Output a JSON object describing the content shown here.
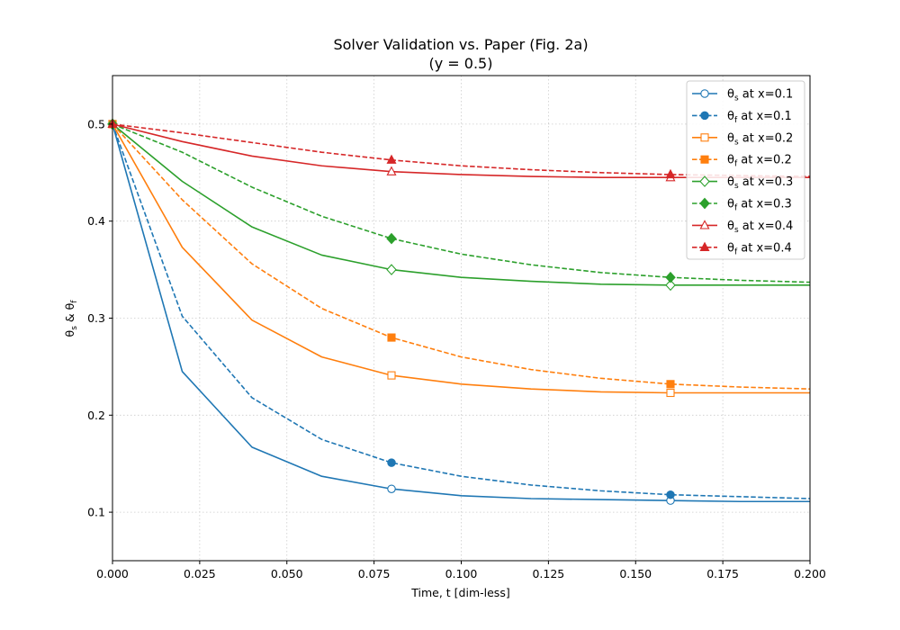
{
  "chart_data": {
    "type": "line",
    "title": "Solver Validation vs. Paper (Fig. 2a)",
    "subtitle": "(y = 0.5)",
    "xlabel": "Time, t [dim-less]",
    "ylabel": "θs & θf",
    "xlim": [
      0.0,
      0.2
    ],
    "ylim": [
      0.05,
      0.55
    ],
    "xticks": [
      0.0,
      0.025,
      0.05,
      0.075,
      0.1,
      0.125,
      0.15,
      0.175,
      0.2
    ],
    "xtick_labels": [
      "0.000",
      "0.025",
      "0.050",
      "0.075",
      "0.100",
      "0.125",
      "0.150",
      "0.175",
      "0.200"
    ],
    "yticks": [
      0.1,
      0.2,
      0.3,
      0.4,
      0.5
    ],
    "ytick_labels": [
      "0.1",
      "0.2",
      "0.3",
      "0.4",
      "0.5"
    ],
    "grid": true,
    "legend_position": "top-right",
    "x": [
      0.0,
      0.02,
      0.04,
      0.06,
      0.08,
      0.1,
      0.12,
      0.14,
      0.16,
      0.18,
      0.2
    ],
    "marker_x": [
      0.0,
      0.08,
      0.16
    ],
    "series": [
      {
        "name": "θs at x=0.1",
        "sym": "θ",
        "sub": "s",
        "rest": " at x=0.1",
        "color": "#1f77b4",
        "dash": false,
        "marker": "circle",
        "filled": false,
        "values": [
          0.5,
          0.245,
          0.167,
          0.137,
          0.124,
          0.117,
          0.114,
          0.113,
          0.112,
          0.111,
          0.111
        ]
      },
      {
        "name": "θf at x=0.1",
        "sym": "θ",
        "sub": "f",
        "rest": " at x=0.1",
        "color": "#1f77b4",
        "dash": true,
        "marker": "circle",
        "filled": true,
        "values": [
          0.5,
          0.302,
          0.218,
          0.175,
          0.151,
          0.137,
          0.128,
          0.122,
          0.118,
          0.116,
          0.114
        ]
      },
      {
        "name": "θs at x=0.2",
        "sym": "θ",
        "sub": "s",
        "rest": " at x=0.2",
        "color": "#ff7f0e",
        "dash": false,
        "marker": "square",
        "filled": false,
        "values": [
          0.5,
          0.373,
          0.298,
          0.26,
          0.241,
          0.232,
          0.227,
          0.224,
          0.223,
          0.223,
          0.223
        ]
      },
      {
        "name": "θf at x=0.2",
        "sym": "θ",
        "sub": "f",
        "rest": " at x=0.2",
        "color": "#ff7f0e",
        "dash": true,
        "marker": "square",
        "filled": true,
        "values": [
          0.5,
          0.422,
          0.356,
          0.31,
          0.28,
          0.26,
          0.247,
          0.238,
          0.232,
          0.229,
          0.227
        ]
      },
      {
        "name": "θs at x=0.3",
        "sym": "θ",
        "sub": "s",
        "rest": " at x=0.3",
        "color": "#2ca02c",
        "dash": false,
        "marker": "diamond",
        "filled": false,
        "values": [
          0.5,
          0.441,
          0.394,
          0.365,
          0.35,
          0.342,
          0.338,
          0.335,
          0.334,
          0.334,
          0.334
        ]
      },
      {
        "name": "θf at x=0.3",
        "sym": "θ",
        "sub": "f",
        "rest": " at x=0.3",
        "color": "#2ca02c",
        "dash": true,
        "marker": "diamond",
        "filled": true,
        "values": [
          0.5,
          0.471,
          0.435,
          0.405,
          0.382,
          0.366,
          0.355,
          0.347,
          0.342,
          0.339,
          0.337
        ]
      },
      {
        "name": "θs at x=0.4",
        "sym": "θ",
        "sub": "s",
        "rest": " at x=0.4",
        "color": "#d62728",
        "dash": false,
        "marker": "triangle",
        "filled": false,
        "values": [
          0.5,
          0.482,
          0.467,
          0.457,
          0.451,
          0.448,
          0.446,
          0.445,
          0.445,
          0.445,
          0.445
        ]
      },
      {
        "name": "θf at x=0.4",
        "sym": "θ",
        "sub": "f",
        "rest": " at x=0.4",
        "color": "#d62728",
        "dash": true,
        "marker": "triangle",
        "filled": true,
        "values": [
          0.5,
          0.491,
          0.481,
          0.471,
          0.463,
          0.457,
          0.453,
          0.45,
          0.448,
          0.447,
          0.446
        ]
      }
    ]
  }
}
